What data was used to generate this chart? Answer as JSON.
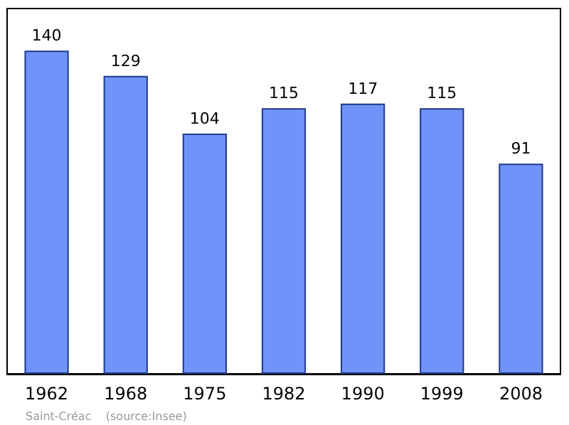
{
  "chart_data": {
    "type": "bar",
    "categories": [
      "1962",
      "1968",
      "1975",
      "1982",
      "1990",
      "1999",
      "2008"
    ],
    "values": [
      140,
      129,
      104,
      115,
      117,
      115,
      91
    ],
    "color": "#7093f9",
    "data_labels": true,
    "annotations": [
      "Saint-Créac    (source:Insee)"
    ]
  }
}
